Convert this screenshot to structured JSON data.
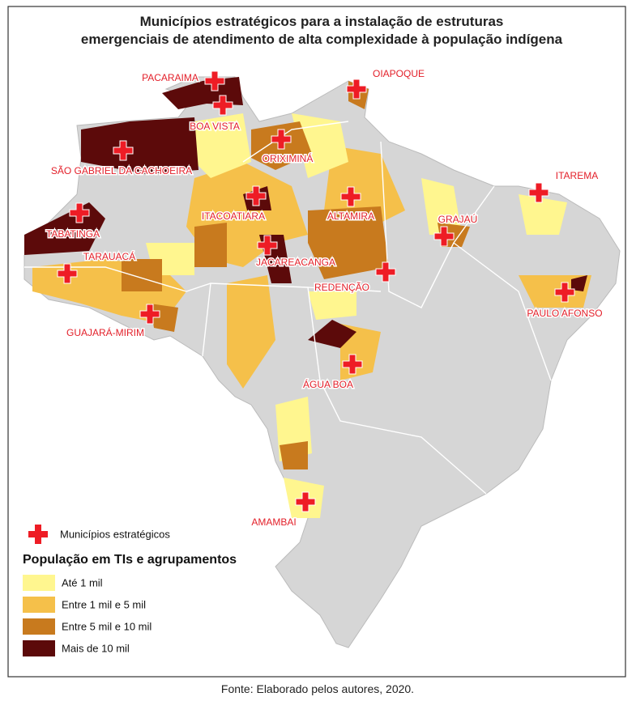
{
  "title_lines": [
    "Municípios estratégicos para a instalação de estruturas",
    "emergenciais de atendimento de alta complexidade à população indígena"
  ],
  "cities": [
    {
      "label": "PACARAIMA"
    },
    {
      "label": "BOA VISTA"
    },
    {
      "label": "OIAPOQUE"
    },
    {
      "label": "ORIXIMINÁ"
    },
    {
      "label": "SÃO GABRIEL DA CACHOEIRA"
    },
    {
      "label": "ITAREMA"
    },
    {
      "label": "ITACOATIARA"
    },
    {
      "label": "ALTAMIRA"
    },
    {
      "label": "TABATINGA"
    },
    {
      "label": "GRAJAÚ"
    },
    {
      "label": "JACAREACANGA"
    },
    {
      "label": "TARAUACÁ"
    },
    {
      "label": "REDENÇÃO"
    },
    {
      "label": "PAULO AFONSO"
    },
    {
      "label": "GUAJARÁ-MIRIM"
    },
    {
      "label": "ÁGUA BOA"
    },
    {
      "label": "AMAMBAI"
    }
  ],
  "legend": {
    "marker_label": "Municípios estratégicos",
    "title": "População em TIs e agrupamentos",
    "items": [
      {
        "label": "Até 1 mil",
        "color": "#fff68f"
      },
      {
        "label": "Entre 1 mil e 5 mil",
        "color": "#f5c04a"
      },
      {
        "label": "Entre 5 mil e 10 mil",
        "color": "#c87a1e"
      },
      {
        "label": "Mais de 10 mil",
        "color": "#5c0a0a"
      }
    ]
  },
  "source": "Fonte: Elaborado pelos autores, 2020."
}
